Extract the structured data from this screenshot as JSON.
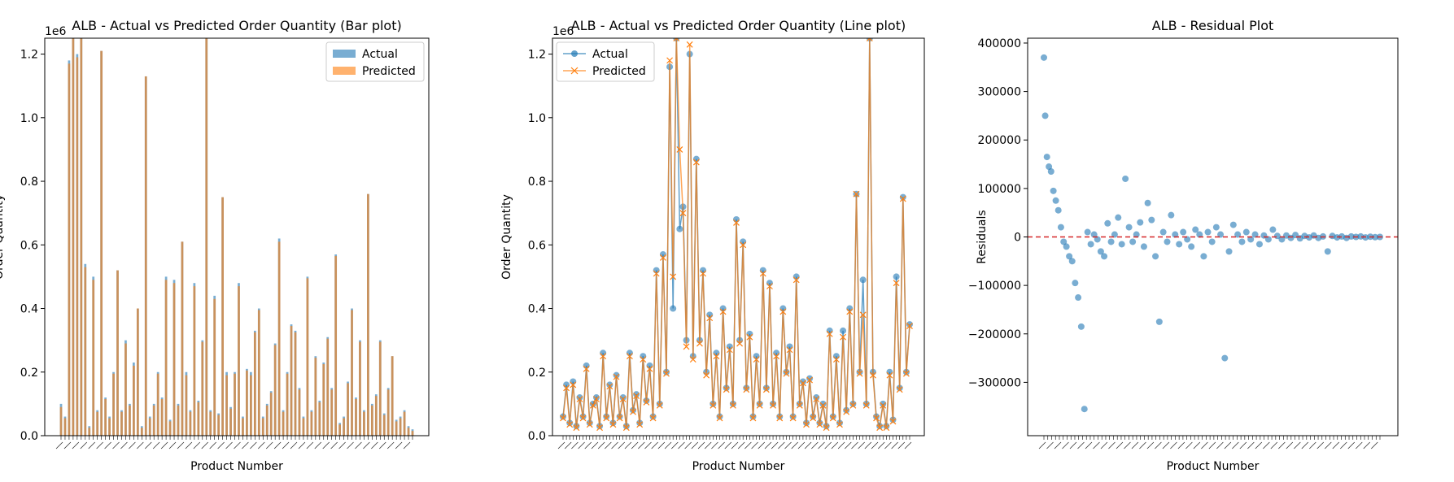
{
  "colors": {
    "actual": "#1f77b4",
    "predicted": "#ff7f0e",
    "zero_line": "#d62728"
  },
  "chart_data": [
    {
      "type": "bar",
      "title": "ALB - Actual vs Predicted Order Quantity (Bar plot)",
      "xlabel": "Product Number",
      "ylabel": "Order Quantity",
      "offset_text": "1e6",
      "ylim": [
        0,
        1250000
      ],
      "yticks": [
        0,
        200000,
        400000,
        600000,
        800000,
        1000000,
        1200000
      ],
      "yticklabels": [
        "0.0",
        "0.2",
        "0.4",
        "0.6",
        "0.8",
        "1.0",
        "1.2"
      ],
      "legend": {
        "placement": "top-right",
        "entries": [
          "Actual",
          "Predicted"
        ]
      },
      "series": [
        {
          "name": "Actual",
          "values": [
            100000,
            60000,
            1180000,
            1250000,
            1200000,
            1250000,
            540000,
            30000,
            500000,
            80000,
            1210000,
            120000,
            60000,
            200000,
            520000,
            80000,
            300000,
            100000,
            230000,
            400000,
            30000,
            1130000,
            60000,
            100000,
            200000,
            120000,
            500000,
            50000,
            490000,
            100000,
            610000,
            200000,
            80000,
            480000,
            110000,
            300000,
            1250000,
            80000,
            440000,
            70000,
            750000,
            200000,
            90000,
            200000,
            480000,
            60000,
            210000,
            200000,
            330000,
            400000,
            60000,
            100000,
            140000,
            290000,
            620000,
            80000,
            200000,
            350000,
            330000,
            150000,
            60000,
            500000,
            80000,
            250000,
            110000,
            230000,
            310000,
            150000,
            570000,
            40000,
            60000,
            170000,
            400000,
            120000,
            300000,
            80000,
            760000,
            100000,
            130000,
            300000,
            70000,
            150000,
            250000,
            50000,
            60000,
            80000,
            30000,
            20000
          ]
        },
        {
          "name": "Predicted",
          "values": [
            90000,
            55000,
            1170000,
            1250000,
            1190000,
            1250000,
            530000,
            25000,
            490000,
            75000,
            1210000,
            115000,
            55000,
            195000,
            520000,
            75000,
            290000,
            95000,
            220000,
            400000,
            25000,
            1130000,
            55000,
            95000,
            195000,
            115000,
            490000,
            45000,
            480000,
            95000,
            610000,
            190000,
            75000,
            470000,
            105000,
            295000,
            1250000,
            75000,
            430000,
            65000,
            750000,
            190000,
            85000,
            195000,
            470000,
            55000,
            205000,
            190000,
            325000,
            395000,
            55000,
            95000,
            135000,
            285000,
            610000,
            75000,
            195000,
            345000,
            325000,
            145000,
            55000,
            495000,
            75000,
            245000,
            105000,
            225000,
            305000,
            145000,
            565000,
            35000,
            55000,
            165000,
            395000,
            115000,
            295000,
            75000,
            760000,
            95000,
            125000,
            295000,
            65000,
            145000,
            250000,
            45000,
            55000,
            75000,
            25000,
            15000
          ]
        }
      ]
    },
    {
      "type": "line",
      "title": "ALB - Actual vs Predicted Order Quantity (Line plot)",
      "xlabel": "Product Number",
      "ylabel": "Order Quantity",
      "offset_text": "1e6",
      "ylim": [
        0,
        1250000
      ],
      "yticks": [
        0,
        200000,
        400000,
        600000,
        800000,
        1000000,
        1200000
      ],
      "yticklabels": [
        "0.0",
        "0.2",
        "0.4",
        "0.6",
        "0.8",
        "1.0",
        "1.2"
      ],
      "legend": {
        "placement": "top-left",
        "entries": [
          "Actual",
          "Predicted"
        ]
      },
      "series": [
        {
          "name": "Actual",
          "values": [
            60000,
            160000,
            40000,
            170000,
            30000,
            120000,
            60000,
            220000,
            40000,
            100000,
            120000,
            30000,
            260000,
            60000,
            160000,
            40000,
            190000,
            60000,
            120000,
            30000,
            260000,
            80000,
            130000,
            40000,
            250000,
            110000,
            220000,
            60000,
            520000,
            100000,
            570000,
            200000,
            1160000,
            400000,
            1250000,
            650000,
            720000,
            300000,
            1200000,
            250000,
            870000,
            300000,
            520000,
            200000,
            380000,
            100000,
            260000,
            60000,
            400000,
            150000,
            280000,
            100000,
            680000,
            300000,
            610000,
            150000,
            320000,
            60000,
            250000,
            100000,
            520000,
            150000,
            480000,
            100000,
            260000,
            60000,
            400000,
            200000,
            280000,
            60000,
            500000,
            100000,
            170000,
            40000,
            180000,
            60000,
            120000,
            40000,
            100000,
            30000,
            330000,
            60000,
            250000,
            40000,
            330000,
            80000,
            400000,
            100000,
            760000,
            200000,
            490000,
            100000,
            1250000,
            200000,
            60000,
            30000,
            100000,
            30000,
            200000,
            50000,
            500000,
            150000,
            750000,
            200000,
            350000
          ]
        },
        {
          "name": "Predicted",
          "values": [
            55000,
            150000,
            35000,
            160000,
            25000,
            115000,
            55000,
            210000,
            35000,
            95000,
            115000,
            25000,
            250000,
            55000,
            155000,
            35000,
            185000,
            55000,
            115000,
            25000,
            250000,
            75000,
            125000,
            35000,
            240000,
            105000,
            210000,
            55000,
            510000,
            95000,
            560000,
            195000,
            1180000,
            500000,
            1250000,
            900000,
            700000,
            280000,
            1230000,
            240000,
            860000,
            290000,
            510000,
            190000,
            370000,
            95000,
            250000,
            55000,
            390000,
            145000,
            270000,
            95000,
            670000,
            290000,
            600000,
            145000,
            310000,
            55000,
            240000,
            95000,
            510000,
            145000,
            470000,
            95000,
            250000,
            55000,
            390000,
            195000,
            270000,
            55000,
            490000,
            95000,
            165000,
            35000,
            175000,
            55000,
            115000,
            35000,
            95000,
            25000,
            320000,
            55000,
            240000,
            35000,
            310000,
            75000,
            390000,
            95000,
            760000,
            195000,
            380000,
            95000,
            1250000,
            190000,
            55000,
            25000,
            95000,
            25000,
            190000,
            45000,
            480000,
            145000,
            745000,
            195000,
            345000
          ]
        }
      ]
    },
    {
      "type": "scatter",
      "title": "ALB - Residual Plot",
      "xlabel": "Product Number",
      "ylabel": "Residuals",
      "ylim": [
        -410000,
        410000
      ],
      "yticks": [
        -300000,
        -200000,
        -100000,
        0,
        100000,
        200000,
        300000,
        400000
      ],
      "yticklabels": [
        "−300000",
        "−200000",
        "−100000",
        "0",
        "100000",
        "200000",
        "300000",
        "400000"
      ],
      "reference_line": 0,
      "series": [
        {
          "name": "",
          "values": [
            370000,
            250000,
            165000,
            145000,
            135000,
            95000,
            75000,
            55000,
            20000,
            -10000,
            -20000,
            -40000,
            -50000,
            -95000,
            -125000,
            -185000,
            -355000,
            10000,
            -15000,
            5000,
            -5000,
            -30000,
            -40000,
            28000,
            -10000,
            5000,
            40000,
            -15000,
            120000,
            20000,
            -10000,
            5000,
            30000,
            -20000,
            70000,
            35000,
            -40000,
            -175000,
            10000,
            -10000,
            45000,
            5000,
            -15000,
            10000,
            -5000,
            -20000,
            15000,
            5000,
            -40000,
            10000,
            -10000,
            20000,
            5000,
            -250000,
            -30000,
            25000,
            5000,
            -10000,
            10000,
            -5000,
            5000,
            -15000,
            3000,
            -5000,
            15000,
            2000,
            -5000,
            3000,
            -2000,
            4000,
            -3000,
            2000,
            -1000,
            3000,
            -2000,
            1000,
            -30000,
            2000,
            -1000,
            1000,
            -2000,
            1000,
            0,
            1000,
            -1000,
            500,
            -500,
            0
          ]
        }
      ]
    }
  ]
}
